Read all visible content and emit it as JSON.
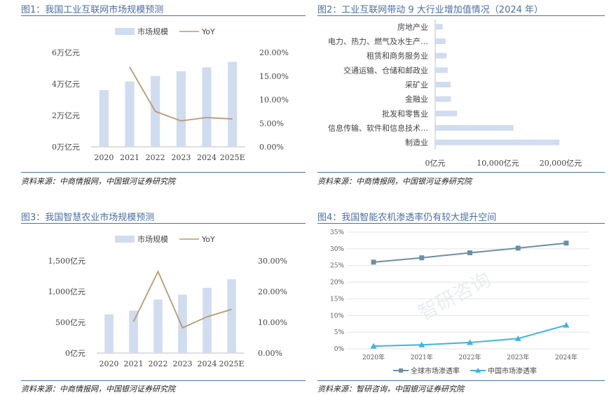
{
  "panels": {
    "p1": {
      "title": "图1：我国工业互联网市场规模预测",
      "source": "资料来源：中商情报网，中国银河证券研究院"
    },
    "p2": {
      "title": "图2：工业互联网带动 9 大行业增加值情况（2024 年）",
      "source": "资料来源：中商情报网，中国银河证券研究院"
    },
    "p3": {
      "title": "图3：我国智慧农业市场规模预测",
      "source": "资料来源：中商情报网，中国银河证券研究院"
    },
    "p4": {
      "title": "图4：我国智能农机渗透率仍有较大提升空间",
      "source": "资料来源：智研咨询，中国银河证券研究院",
      "watermark": "智研咨询"
    }
  },
  "colors": {
    "accent": "#4a6fa5",
    "bar": "#d0dcef",
    "line": "#b89a6e",
    "global": "#6b8fa3",
    "china": "#3bb3e8"
  },
  "chart_data": [
    {
      "type": "bar",
      "categories": [
        "2020",
        "2021",
        "2022",
        "2023",
        "2024",
        "2025E"
      ],
      "series": [
        {
          "name": "市场规模",
          "type": "bar",
          "axis": "left",
          "values": [
            3.6,
            4.15,
            4.5,
            4.8,
            5.05,
            5.4
          ]
        },
        {
          "name": "YoY",
          "type": "line",
          "axis": "right",
          "values": [
            null,
            16.9,
            7.5,
            5.5,
            6.2,
            5.9
          ]
        }
      ],
      "yticks_left": [
        "0万亿元",
        "2万亿元",
        "4万亿元",
        "6万亿元"
      ],
      "yticks_right": [
        "0.00%",
        "5.00%",
        "10.00%",
        "15.00%",
        "20.00%"
      ],
      "ylim_left": [
        0,
        6
      ],
      "ylim_right": [
        0,
        20
      ],
      "legend": "top"
    },
    {
      "type": "bar",
      "orientation": "horizontal",
      "categories": [
        "房地产业",
        "电力、热力、燃气及水生产…",
        "租赁和商务服务业",
        "交通运输、仓储和邮政业",
        "采矿业",
        "金融业",
        "批发和零售业",
        "信息传输、软件和信息技术…",
        "制造业"
      ],
      "values": [
        1200,
        1650,
        1800,
        2000,
        2450,
        2500,
        3500,
        12500,
        19800
      ],
      "xticks": [
        "0亿元",
        "10,000亿元",
        "20,000亿元"
      ],
      "xlim": [
        0,
        20000
      ]
    },
    {
      "type": "bar",
      "categories": [
        "2020",
        "2021",
        "2022",
        "2023",
        "2024",
        "2025E"
      ],
      "series": [
        {
          "name": "市场规模",
          "type": "bar",
          "axis": "left",
          "values": [
            630,
            690,
            870,
            950,
            1060,
            1200
          ]
        },
        {
          "name": "YoY",
          "type": "line",
          "axis": "right",
          "values": [
            null,
            10.2,
            26.5,
            8.2,
            11.8,
            14.2
          ]
        }
      ],
      "yticks_left": [
        "0亿元",
        "500亿元",
        "1,000亿元",
        "1,500亿元"
      ],
      "yticks_right": [
        "0.00%",
        "10.00%",
        "20.00%",
        "30.00%"
      ],
      "ylim_left": [
        0,
        1500
      ],
      "ylim_right": [
        0,
        30
      ],
      "legend": "top"
    },
    {
      "type": "line",
      "categories": [
        "2020年",
        "2021年",
        "2022年",
        "2023年",
        "2024年"
      ],
      "series": [
        {
          "name": "全球市场渗透率",
          "marker": "square",
          "values": [
            26.0,
            27.3,
            28.8,
            30.2,
            31.7
          ]
        },
        {
          "name": "中国市场渗透率",
          "marker": "triangle",
          "values": [
            0.8,
            1.2,
            1.9,
            3.1,
            7.1
          ]
        }
      ],
      "yticks": [
        "0%",
        "5%",
        "10%",
        "15%",
        "20%",
        "25%",
        "30%",
        "35%"
      ],
      "ylim": [
        0,
        35
      ],
      "grid": true,
      "legend": "bottom"
    }
  ]
}
